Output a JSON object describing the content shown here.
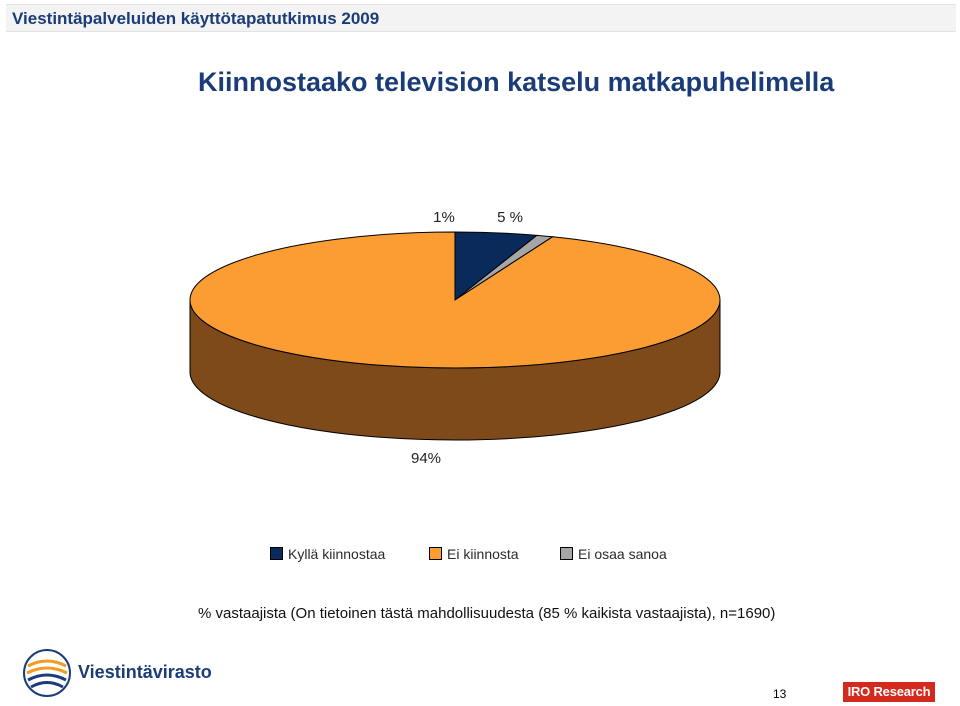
{
  "header": {
    "text": "Viestintäpalveluiden käyttötapatutkimus 2009"
  },
  "title": "Kiinnostaako television katselu matkapuhelimella",
  "chart_data": {
    "type": "pie",
    "title": "Kiinnostaako television katselu matkapuhelimella",
    "slices": [
      {
        "label": "Kyllä kiinnostaa",
        "value": 5,
        "value_label": "5 %",
        "color": "#0a2a5c"
      },
      {
        "label": "Ei kiinnosta",
        "value": 94,
        "value_label": "94%",
        "color": "#fb9d33"
      },
      {
        "label": "Ei osaa sanoa",
        "value": 1,
        "value_label": "1%",
        "color": "#a6a6a6"
      }
    ],
    "side_color": "#7f4a19",
    "legend_position": "bottom"
  },
  "note": "% vastaajista (On tietoinen tästä mahdollisuudesta (85 % kaikista vastaajista), n=1690)",
  "footer": {
    "left_logo_text": "Viestintävirasto",
    "page_number": "13",
    "right_logo_text": "IRO Research"
  }
}
